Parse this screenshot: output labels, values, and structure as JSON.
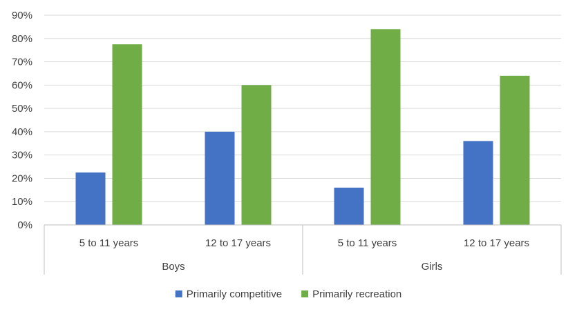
{
  "chart_data": {
    "type": "bar",
    "title": "",
    "xlabel": "",
    "ylabel": "",
    "ylim": [
      0,
      90
    ],
    "yticks": [
      "0%",
      "10%",
      "20%",
      "30%",
      "40%",
      "50%",
      "60%",
      "70%",
      "80%",
      "90%"
    ],
    "grid": true,
    "legend_position": "bottom",
    "groups": [
      {
        "label": "Boys",
        "categories": [
          "5 to 11 years",
          "12 to 17 years"
        ]
      },
      {
        "label": "Girls",
        "categories": [
          "5 to 11 years",
          "12 to 17 years"
        ]
      }
    ],
    "categories": [
      "5 to 11 years",
      "12 to 17 years",
      "5 to 11 years",
      "12 to 17 years"
    ],
    "series": [
      {
        "name": "Primarily competitive",
        "color": "#4472c4",
        "values": [
          22.5,
          40,
          16,
          36
        ]
      },
      {
        "name": "Primarily recreation",
        "color": "#70ad47",
        "values": [
          77.5,
          60,
          84,
          64
        ]
      }
    ]
  }
}
